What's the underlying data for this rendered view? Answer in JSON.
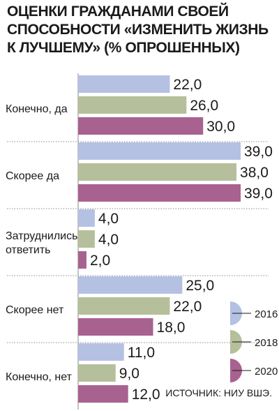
{
  "chart_data": {
    "type": "bar",
    "orientation": "horizontal",
    "title": "Оценки гражданами своей способности «изменить жизнь к лучшему» (% опрошенных)",
    "categories": [
      "Конечно, да",
      "Скорее да",
      "Затруднились ответить",
      "Скорее нет",
      "Конечно, нет"
    ],
    "category_lines": [
      [
        "Конечно, да"
      ],
      [
        "Скорее да"
      ],
      [
        "Затруднились",
        "ответить"
      ],
      [
        "Скорее нет"
      ],
      [
        "Конечно, нет"
      ]
    ],
    "series": [
      {
        "name": "2016",
        "color": "#b4c1e3",
        "values": [
          22.0,
          39.0,
          4.0,
          25.0,
          11.0
        ],
        "labels": [
          "22,0",
          "39,0",
          "4,0",
          "25,0",
          "11,0"
        ]
      },
      {
        "name": "2018",
        "color": "#b6bf9b",
        "values": [
          26.0,
          38.0,
          4.0,
          22.0,
          9.0
        ],
        "labels": [
          "26,0",
          "38,0",
          "4,0",
          "22,0",
          "9,0"
        ]
      },
      {
        "name": "2020",
        "color": "#a8628f",
        "values": [
          30.0,
          39.0,
          2.0,
          18.0,
          12.0
        ],
        "labels": [
          "30,0",
          "39,0",
          "2,0",
          "18,0",
          "12,0"
        ]
      }
    ],
    "xlim": [
      0,
      39
    ],
    "grid": false,
    "legend_position": "bottom-right"
  },
  "source": "ИСТОЧНИК: НИУ ВШЭ."
}
